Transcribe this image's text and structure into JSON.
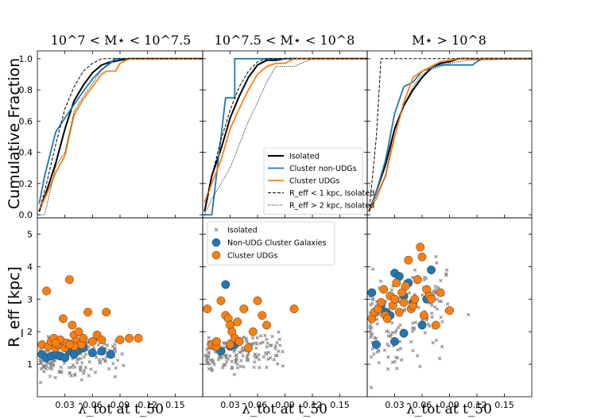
{
  "colors": {
    "isolated": "#000000",
    "cluster_non_udg": "#1f77b4",
    "cluster_udg": "#ff7f0e",
    "isolated_scatter": "#888888"
  },
  "xlabel": "λ_tot at t_50",
  "chart_data": [
    {
      "type": "line",
      "panel": "top-1",
      "title": "10^7 < M⋆ < 10^7.5",
      "ylabel": "Cumulative Fraction",
      "xlim": [
        0,
        0.18
      ],
      "ylim": [
        -0.02,
        1.05
      ],
      "yticks": [
        0.0,
        0.2,
        0.4,
        0.6,
        0.8,
        1.0
      ],
      "series": [
        {
          "name": "Isolated",
          "style": "solid-black",
          "x": [
            0.002,
            0.01,
            0.02,
            0.03,
            0.04,
            0.05,
            0.06,
            0.07,
            0.08,
            0.09,
            0.1,
            0.18
          ],
          "y": [
            0.02,
            0.15,
            0.33,
            0.55,
            0.73,
            0.83,
            0.91,
            0.96,
            0.98,
            0.99,
            1.0,
            1.0
          ]
        },
        {
          "name": "Cluster non-UDGs",
          "style": "solid-blue",
          "x": [
            0.002,
            0.008,
            0.02,
            0.03,
            0.045,
            0.06,
            0.07,
            0.085,
            0.18
          ],
          "y": [
            0.07,
            0.25,
            0.53,
            0.62,
            0.75,
            0.87,
            0.93,
            1.0,
            1.0
          ]
        },
        {
          "name": "Cluster UDGs",
          "style": "solid-orange",
          "x": [
            0.002,
            0.01,
            0.02,
            0.03,
            0.04,
            0.05,
            0.06,
            0.07,
            0.075,
            0.085,
            0.09,
            0.1,
            0.18
          ],
          "y": [
            0.03,
            0.13,
            0.27,
            0.38,
            0.64,
            0.74,
            0.82,
            0.9,
            0.92,
            0.92,
            0.97,
            1.0,
            1.0
          ]
        },
        {
          "name": "R_eff < 1 kpc, Isolated",
          "style": "dashed-black",
          "x": [
            0.002,
            0.01,
            0.02,
            0.03,
            0.04,
            0.05,
            0.06,
            0.07,
            0.18
          ],
          "y": [
            0.02,
            0.2,
            0.45,
            0.68,
            0.82,
            0.92,
            0.97,
            1.0,
            1.0
          ]
        },
        {
          "name": "R_eff > 2 kpc, Isolated",
          "style": "dotted-black",
          "x": [
            0.002,
            0.008,
            0.015,
            0.02,
            0.03,
            0.04,
            0.05,
            0.06,
            0.07,
            0.08,
            0.09,
            0.1,
            0.18
          ],
          "y": [
            0.0,
            0.0,
            0.18,
            0.31,
            0.4,
            0.66,
            0.76,
            0.84,
            0.93,
            0.97,
            0.99,
            1.0,
            1.0
          ]
        }
      ]
    },
    {
      "type": "line",
      "panel": "top-2",
      "title": "10^7.5 < M⋆ < 10^8",
      "xlim": [
        0,
        0.18
      ],
      "ylim": [
        -0.02,
        1.05
      ],
      "series": [
        {
          "name": "Isolated",
          "style": "solid-black",
          "x": [
            0.002,
            0.01,
            0.02,
            0.03,
            0.04,
            0.05,
            0.06,
            0.07,
            0.08,
            0.09,
            0.18
          ],
          "y": [
            0.02,
            0.25,
            0.42,
            0.62,
            0.76,
            0.88,
            0.96,
            0.99,
            0.99,
            1.0,
            1.0
          ]
        },
        {
          "name": "Cluster non-UDGs",
          "style": "solid-blue",
          "x": [
            0.002,
            0.01,
            0.015,
            0.025,
            0.025,
            0.035,
            0.035,
            0.18
          ],
          "y": [
            0.0,
            0.0,
            0.25,
            0.75,
            0.75,
            0.75,
            1.0,
            1.0
          ]
        },
        {
          "name": "Cluster UDGs",
          "style": "solid-orange",
          "x": [
            0.002,
            0.01,
            0.02,
            0.03,
            0.04,
            0.05,
            0.06,
            0.07,
            0.08,
            0.09,
            0.1,
            0.18
          ],
          "y": [
            0.08,
            0.2,
            0.35,
            0.55,
            0.68,
            0.8,
            0.9,
            0.95,
            0.97,
            0.97,
            1.0,
            1.0
          ]
        },
        {
          "name": "R_eff < 1 kpc, Isolated",
          "style": "dashed-black",
          "x": [
            0.002,
            0.01,
            0.02,
            0.03,
            0.04,
            0.05,
            0.06,
            0.07,
            0.18
          ],
          "y": [
            0.03,
            0.25,
            0.48,
            0.67,
            0.82,
            0.92,
            0.98,
            1.0,
            1.0
          ]
        },
        {
          "name": "R_eff > 2 kpc, Isolated",
          "style": "dotted-black",
          "x": [
            0.002,
            0.01,
            0.02,
            0.03,
            0.04,
            0.05,
            0.06,
            0.07,
            0.08,
            0.1,
            0.12,
            0.18
          ],
          "y": [
            0.0,
            0.1,
            0.2,
            0.3,
            0.45,
            0.6,
            0.72,
            0.85,
            0.95,
            0.95,
            1.0,
            1.0
          ]
        }
      ]
    },
    {
      "type": "line",
      "panel": "top-3",
      "title": "M⋆ > 10^8",
      "xlim": [
        0,
        0.18
      ],
      "ylim": [
        -0.02,
        1.05
      ],
      "series": [
        {
          "name": "Isolated",
          "style": "solid-black",
          "x": [
            0.002,
            0.01,
            0.02,
            0.03,
            0.04,
            0.05,
            0.06,
            0.07,
            0.08,
            0.09,
            0.1,
            0.18
          ],
          "y": [
            0.02,
            0.15,
            0.32,
            0.55,
            0.7,
            0.8,
            0.88,
            0.94,
            0.97,
            0.98,
            1.0,
            1.0
          ]
        },
        {
          "name": "Cluster non-UDGs",
          "style": "solid-blue",
          "x": [
            0.002,
            0.01,
            0.02,
            0.03,
            0.04,
            0.05,
            0.06,
            0.07,
            0.08,
            0.09,
            0.1,
            0.115,
            0.125,
            0.18
          ],
          "y": [
            0.02,
            0.15,
            0.35,
            0.65,
            0.82,
            0.85,
            0.92,
            0.94,
            0.96,
            0.96,
            0.96,
            0.96,
            1.0,
            1.0
          ]
        },
        {
          "name": "Cluster UDGs",
          "style": "solid-orange",
          "x": [
            0.002,
            0.01,
            0.02,
            0.03,
            0.04,
            0.05,
            0.06,
            0.07,
            0.08,
            0.09,
            0.1,
            0.18
          ],
          "y": [
            0.02,
            0.12,
            0.25,
            0.5,
            0.72,
            0.88,
            0.92,
            0.95,
            0.98,
            0.99,
            1.0,
            1.0
          ]
        },
        {
          "name": "R_eff < 1 kpc, Isolated",
          "style": "dashed-black",
          "x": [
            0.002,
            0.01,
            0.015,
            0.18
          ],
          "y": [
            0.02,
            0.5,
            1.0,
            1.0
          ]
        },
        {
          "name": "R_eff > 2 kpc, Isolated",
          "style": "dotted-black",
          "x": [
            0.002,
            0.01,
            0.02,
            0.03,
            0.04,
            0.05,
            0.06,
            0.07,
            0.08,
            0.09,
            0.1,
            0.11,
            0.18
          ],
          "y": [
            0.02,
            0.1,
            0.25,
            0.55,
            0.7,
            0.82,
            0.9,
            0.93,
            0.95,
            0.97,
            0.98,
            0.99,
            1.0
          ]
        }
      ],
      "legend": {
        "placement": "lower-left of panel 2",
        "entries": [
          {
            "label": "Isolated",
            "style": "solid-black"
          },
          {
            "label": "Cluster non-UDGs",
            "style": "solid-blue"
          },
          {
            "label": "Cluster UDGs",
            "style": "solid-orange"
          },
          {
            "label": "R_eff < 1 kpc, Isolated",
            "style": "dashed-black"
          },
          {
            "label": "R_eff > 2 kpc, Isolated",
            "style": "dotted-black"
          }
        ]
      }
    },
    {
      "type": "scatter",
      "panel": "bottom-1",
      "ylabel": "R_eff [kpc]",
      "xlim": [
        0,
        0.18
      ],
      "ylim": [
        0,
        5.5
      ],
      "xticks": [
        0.03,
        0.06,
        0.09,
        0.12,
        0.15
      ],
      "xticklabels": [
        "0.03",
        "0.06",
        "0.09",
        "0.12",
        "0.15"
      ],
      "yticks": [
        1,
        2,
        3,
        4,
        5
      ],
      "series": [
        {
          "name": "Cluster non-UDG",
          "x": [
            0.005,
            0.01,
            0.015,
            0.02,
            0.025,
            0.03,
            0.035,
            0.04,
            0.045,
            0.05,
            0.06,
            0.07,
            0.08
          ],
          "y": [
            1.3,
            1.2,
            1.25,
            1.3,
            1.25,
            1.2,
            1.4,
            1.3,
            1.45,
            1.5,
            1.35,
            1.4,
            1.3
          ]
        },
        {
          "name": "Cluster UDG",
          "x": [
            0.005,
            0.01,
            0.012,
            0.015,
            0.018,
            0.02,
            0.022,
            0.025,
            0.028,
            0.03,
            0.032,
            0.035,
            0.038,
            0.04,
            0.042,
            0.045,
            0.048,
            0.05,
            0.055,
            0.06,
            0.065,
            0.07,
            0.075,
            0.09,
            0.1,
            0.11,
            0.04,
            0.02,
            0.035
          ],
          "y": [
            1.6,
            3.25,
            1.55,
            1.7,
            1.8,
            1.5,
            1.6,
            1.75,
            2.4,
            1.5,
            1.65,
            3.6,
            2.2,
            1.9,
            1.7,
            2.0,
            1.6,
            1.8,
            2.6,
            1.7,
            1.9,
            1.75,
            2.6,
            1.75,
            1.8,
            1.8,
            1.55,
            1.65,
            1.6
          ]
        }
      ]
    },
    {
      "type": "scatter",
      "panel": "bottom-2",
      "xlim": [
        0,
        0.18
      ],
      "ylim": [
        0,
        5.5
      ],
      "legend": {
        "placement": "top-left",
        "entries": [
          "Isolated",
          "Non-UDG Cluster Galaxies",
          "Cluster UDGs"
        ]
      },
      "series": [
        {
          "name": "Cluster non-UDG",
          "x": [
            0.02,
            0.025,
            0.03,
            0.035,
            0.04
          ],
          "y": [
            1.4,
            3.45,
            1.55,
            1.6,
            1.7
          ]
        },
        {
          "name": "Cluster UDG",
          "x": [
            0.005,
            0.01,
            0.015,
            0.02,
            0.025,
            0.028,
            0.03,
            0.032,
            0.035,
            0.038,
            0.04,
            0.045,
            0.05,
            0.055,
            0.06,
            0.065,
            0.07,
            0.1,
            0.015,
            0.03
          ],
          "y": [
            2.7,
            1.6,
            1.55,
            2.95,
            2.5,
            2.4,
            2.2,
            2.0,
            1.8,
            2.3,
            1.7,
            2.7,
            1.5,
            2.0,
            2.95,
            2.5,
            2.2,
            2.7,
            1.7,
            1.6
          ]
        }
      ]
    },
    {
      "type": "scatter",
      "panel": "bottom-3",
      "xlim": [
        0,
        0.18
      ],
      "ylim": [
        0,
        5.5
      ],
      "series": [
        {
          "name": "Cluster non-UDG",
          "x": [
            0.005,
            0.01,
            0.015,
            0.02,
            0.025,
            0.03,
            0.035,
            0.04,
            0.045,
            0.05,
            0.055,
            0.06,
            0.065,
            0.07,
            0.03,
            0.04
          ],
          "y": [
            3.2,
            1.6,
            2.8,
            2.6,
            2.5,
            3.8,
            3.7,
            3.1,
            3.5,
            2.9,
            3.6,
            2.2,
            3.0,
            3.9,
            1.7,
            1.95
          ]
        },
        {
          "name": "Cluster UDG",
          "x": [
            0.005,
            0.008,
            0.012,
            0.015,
            0.018,
            0.02,
            0.022,
            0.025,
            0.028,
            0.03,
            0.032,
            0.035,
            0.038,
            0.04,
            0.042,
            0.045,
            0.048,
            0.05,
            0.052,
            0.055,
            0.058,
            0.06,
            0.062,
            0.065,
            0.068,
            0.07,
            0.075,
            0.08,
            0.09
          ],
          "y": [
            2.4,
            2.6,
            2.7,
            2.9,
            3.3,
            2.5,
            2.4,
            3.1,
            2.8,
            3.0,
            3.5,
            2.6,
            3.2,
            2.9,
            3.4,
            4.2,
            2.7,
            2.8,
            3.0,
            3.6,
            4.6,
            4.3,
            2.5,
            3.3,
            3.1,
            3.0,
            2.2,
            3.2,
            2.65
          ]
        }
      ]
    }
  ]
}
